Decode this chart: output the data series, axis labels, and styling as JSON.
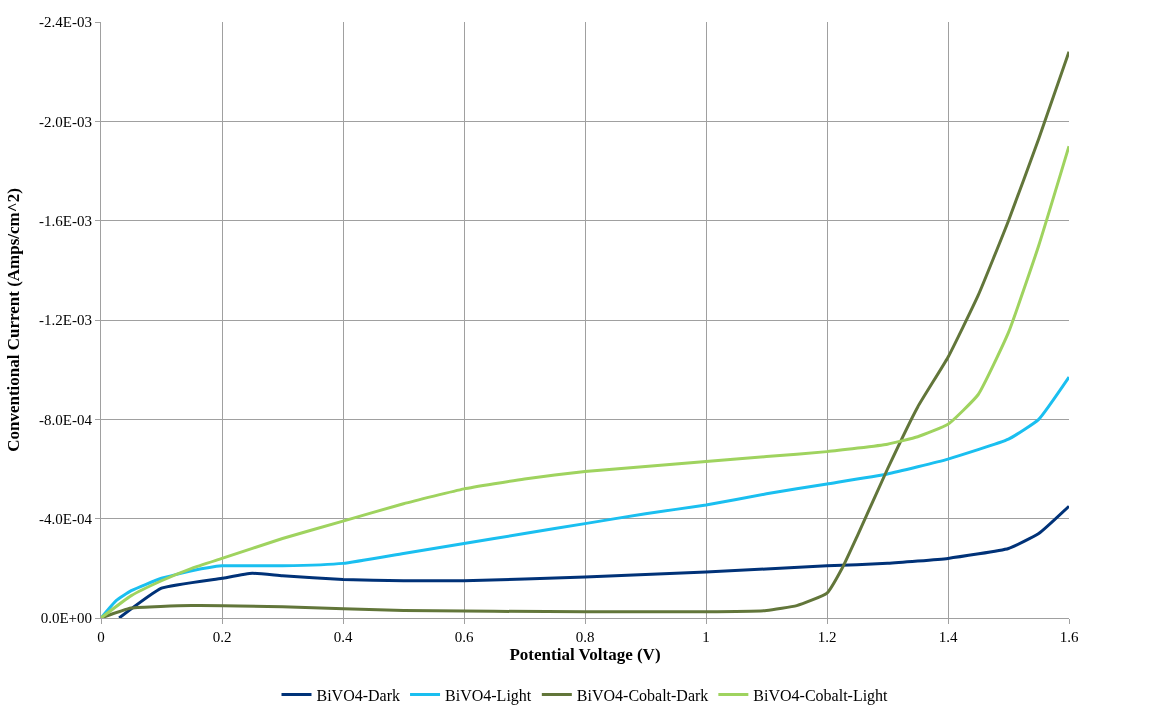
{
  "chart_data": {
    "type": "line",
    "xlabel": "Potential Voltage (V)",
    "ylabel": "Conventional Current (Amps/cm^2)",
    "xlim": [
      0,
      1.6
    ],
    "xticks": [
      0,
      0.2,
      0.4,
      0.6,
      0.8,
      1,
      1.2,
      1.4,
      1.6
    ],
    "ylim": [
      0,
      -0.0024
    ],
    "yticks": [
      {
        "value": 0,
        "label": "0.0E+00"
      },
      {
        "value": -0.0004,
        "label": "-4.0E-04"
      },
      {
        "value": -0.0008,
        "label": "-8.0E-04"
      },
      {
        "value": -0.0012,
        "label": "-1.2E-03"
      },
      {
        "value": -0.0016,
        "label": "-1.6E-03"
      },
      {
        "value": -0.002,
        "label": "-2.0E-03"
      },
      {
        "value": -0.0024,
        "label": "-2.4E-03"
      }
    ],
    "grid": true,
    "legend": "bottom",
    "marker": "none",
    "line_style": "solid",
    "series": [
      {
        "name": "BiVO4-Dark",
        "color": "#003278",
        "x": [
          0.03,
          0.1,
          0.2,
          0.25,
          0.3,
          0.4,
          0.5,
          0.6,
          0.8,
          1.0,
          1.2,
          1.3,
          1.4,
          1.5,
          1.55,
          1.6
        ],
        "values": [
          0,
          -0.00012,
          -0.00016,
          -0.00018,
          -0.00017,
          -0.000155,
          -0.00015,
          -0.00015,
          -0.000165,
          -0.000185,
          -0.00021,
          -0.00022,
          -0.00024,
          -0.00028,
          -0.00034,
          -0.00045
        ]
      },
      {
        "name": "BiVO4-Light",
        "color": "#1abff0",
        "x": [
          0,
          0.025,
          0.05,
          0.1,
          0.15,
          0.2,
          0.3,
          0.4,
          0.5,
          0.6,
          0.7,
          0.8,
          0.9,
          1.0,
          1.1,
          1.2,
          1.3,
          1.4,
          1.5,
          1.55,
          1.6
        ],
        "values": [
          0,
          -7e-05,
          -0.00011,
          -0.00016,
          -0.00019,
          -0.00021,
          -0.00021,
          -0.00022,
          -0.00026,
          -0.0003,
          -0.00034,
          -0.00038,
          -0.00042,
          -0.000455,
          -0.0005,
          -0.00054,
          -0.00058,
          -0.00064,
          -0.00072,
          -0.0008,
          -0.00097
        ]
      },
      {
        "name": "BiVO4-Cobalt-Dark",
        "color": "#62763a",
        "x": [
          0,
          0.05,
          0.15,
          0.3,
          0.5,
          0.8,
          1.0,
          1.1,
          1.15,
          1.2,
          1.225,
          1.25,
          1.3,
          1.35,
          1.4,
          1.45,
          1.5,
          1.55,
          1.6
        ],
        "values": [
          0,
          -4e-05,
          -5e-05,
          -4.5e-05,
          -3e-05,
          -2.5e-05,
          -2.5e-05,
          -3e-05,
          -5e-05,
          -0.0001,
          -0.0002,
          -0.00033,
          -0.0006,
          -0.00085,
          -0.00105,
          -0.0013,
          -0.0016,
          -0.00193,
          -0.00228
        ]
      },
      {
        "name": "BiVO4-Cobalt-Light",
        "color": "#9fd35f",
        "x": [
          0,
          0.05,
          0.1,
          0.15,
          0.2,
          0.3,
          0.4,
          0.5,
          0.6,
          0.7,
          0.8,
          0.9,
          1.0,
          1.1,
          1.2,
          1.3,
          1.35,
          1.4,
          1.45,
          1.5,
          1.55,
          1.6
        ],
        "values": [
          0,
          -9e-05,
          -0.00015,
          -0.0002,
          -0.00024,
          -0.00032,
          -0.00039,
          -0.00046,
          -0.00052,
          -0.00056,
          -0.00059,
          -0.00061,
          -0.00063,
          -0.00065,
          -0.00067,
          -0.0007,
          -0.00073,
          -0.00078,
          -0.0009,
          -0.00115,
          -0.0015,
          -0.0019
        ]
      }
    ]
  }
}
